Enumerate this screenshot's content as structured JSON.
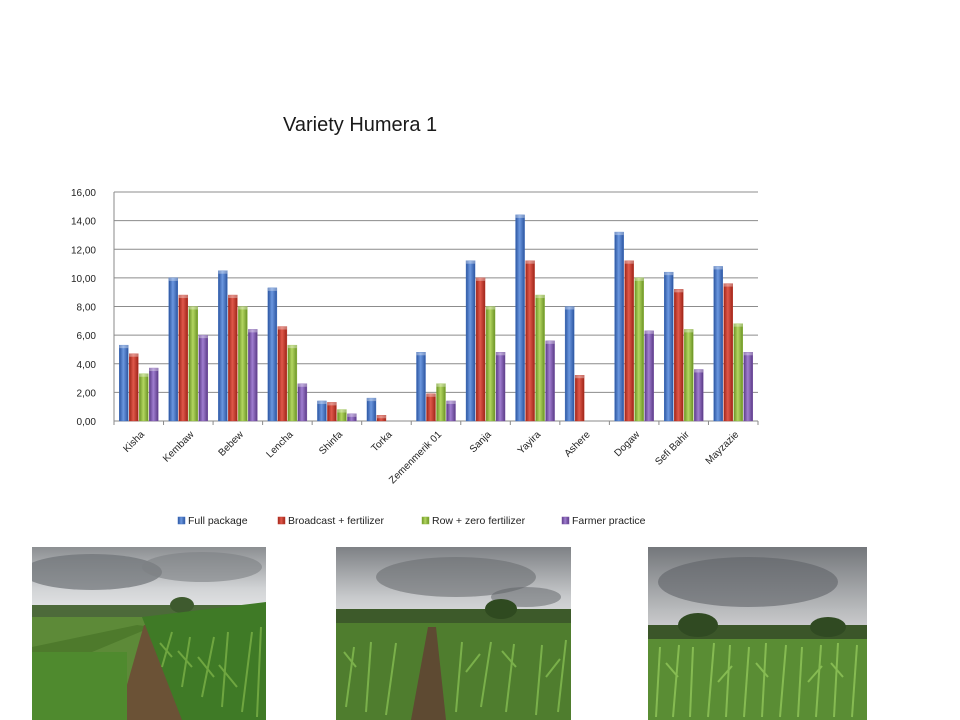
{
  "chart_data": {
    "type": "bar",
    "title": "Variety Humera 1",
    "xlabel": "",
    "ylabel": "",
    "ylim": [
      0,
      16
    ],
    "yticks": [
      "0,00",
      "2,00",
      "4,00",
      "6,00",
      "8,00",
      "10,00",
      "12,00",
      "14,00",
      "16,00"
    ],
    "grid": true,
    "legend_position": "bottom",
    "categories": [
      "Kisha",
      "Kembaw",
      "Bebew",
      "Lencha",
      "Shinfa",
      "Torka",
      "Zemenmerik 01",
      "Sanja",
      "Yayira",
      "Ashere",
      "Dogaw",
      "Sefi Bahir",
      "Mayzazie"
    ],
    "series": [
      {
        "name": "Full package",
        "color": "#3F6FBF",
        "values": [
          5.3,
          10.0,
          10.5,
          9.3,
          1.4,
          1.6,
          4.8,
          11.2,
          14.4,
          8.0,
          13.2,
          10.4,
          10.8
        ]
      },
      {
        "name": "Broadcast + fertilizer",
        "color": "#C0392B",
        "values": [
          4.7,
          8.8,
          8.8,
          6.6,
          1.3,
          0.4,
          1.9,
          10.0,
          11.2,
          3.2,
          11.2,
          9.2,
          9.6
        ]
      },
      {
        "name": "Row + zero fertilizer",
        "color": "#8DB83A",
        "values": [
          3.3,
          8.0,
          8.0,
          5.3,
          0.8,
          0,
          2.6,
          8.0,
          8.8,
          0,
          10.0,
          6.4,
          6.8
        ]
      },
      {
        "name": "Farmer practice",
        "color": "#7A55A8",
        "values": [
          3.7,
          6.0,
          6.4,
          2.6,
          0.5,
          0,
          1.4,
          4.8,
          5.6,
          0,
          6.3,
          3.6,
          4.8
        ]
      }
    ]
  },
  "photos": [
    {
      "icon": "maize-field-photo"
    },
    {
      "icon": "maize-field-photo"
    },
    {
      "icon": "maize-field-photo"
    }
  ]
}
